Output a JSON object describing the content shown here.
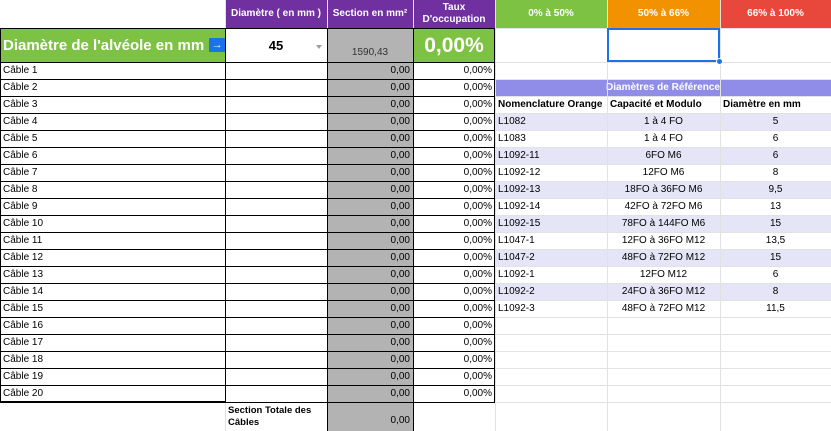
{
  "headers": {
    "diameter": "Diamètre ( en mm )",
    "section": "Section en mm²",
    "occupancy": "Taux\nD'occupation",
    "range_low": "0% à 50%",
    "range_mid": "50% à 66%",
    "range_high": "66% à 100%"
  },
  "alveole": {
    "label": "Diamètre de l'alvéole en mm",
    "arrow": "→",
    "diameter_value": "45",
    "section_value": "1590,43",
    "occupancy_value": "0,00%"
  },
  "cables": [
    {
      "name": "Câble 1",
      "section": "0,00",
      "rate": "0,00%"
    },
    {
      "name": "Câble 2",
      "section": "0,00",
      "rate": "0,00%"
    },
    {
      "name": "Câble 3",
      "section": "0,00",
      "rate": "0,00%"
    },
    {
      "name": "Câble 4",
      "section": "0,00",
      "rate": "0,00%"
    },
    {
      "name": "Câble 5",
      "section": "0,00",
      "rate": "0,00%"
    },
    {
      "name": "Câble 6",
      "section": "0,00",
      "rate": "0,00%"
    },
    {
      "name": "Câble 7",
      "section": "0,00",
      "rate": "0,00%"
    },
    {
      "name": "Câble 8",
      "section": "0,00",
      "rate": "0,00%"
    },
    {
      "name": "Câble 9",
      "section": "0,00",
      "rate": "0,00%"
    },
    {
      "name": "Câble 10",
      "section": "0,00",
      "rate": "0,00%"
    },
    {
      "name": "Câble 11",
      "section": "0,00",
      "rate": "0,00%"
    },
    {
      "name": "Câble 12",
      "section": "0,00",
      "rate": "0,00%"
    },
    {
      "name": "Câble 13",
      "section": "0,00",
      "rate": "0,00%"
    },
    {
      "name": "Câble 14",
      "section": "0,00",
      "rate": "0,00%"
    },
    {
      "name": "Câble 15",
      "section": "0,00",
      "rate": "0,00%"
    },
    {
      "name": "Câble 16",
      "section": "0,00",
      "rate": "0,00%"
    },
    {
      "name": "Câble 17",
      "section": "0,00",
      "rate": "0,00%"
    },
    {
      "name": "Câble 18",
      "section": "0,00",
      "rate": "0,00%"
    },
    {
      "name": "Câble 19",
      "section": "0,00",
      "rate": "0,00%"
    },
    {
      "name": "Câble 20",
      "section": "0,00",
      "rate": "0,00%"
    }
  ],
  "total": {
    "label": "Section Totale des Câbles",
    "value": "0,00"
  },
  "reference": {
    "title": "Diamètres de Référence",
    "columns": [
      "Nomenclature Orange",
      "Capacité et Modulo",
      "Diamètre en mm"
    ],
    "rows": [
      {
        "name": "L1082",
        "capacity": "1 à 4 FO",
        "diameter": "5"
      },
      {
        "name": "L1083",
        "capacity": "1 à 4 FO",
        "diameter": "6"
      },
      {
        "name": "L1092-11",
        "capacity": "6FO M6",
        "diameter": "6"
      },
      {
        "name": "L1092-12",
        "capacity": "12FO M6",
        "diameter": "8"
      },
      {
        "name": "L1092-13",
        "capacity": "18FO à 36FO M6",
        "diameter": "9,5"
      },
      {
        "name": "L1092-14",
        "capacity": "42FO à 72FO M6",
        "diameter": "13"
      },
      {
        "name": "L1092-15",
        "capacity": "78FO à 144FO M6",
        "diameter": "15"
      },
      {
        "name": "L1047-1",
        "capacity": "12FO à 36FO M12",
        "diameter": "13,5"
      },
      {
        "name": "L1047-2",
        "capacity": "48FO à 72FO M12",
        "diameter": "15"
      },
      {
        "name": "L1092-1",
        "capacity": "12FO M12",
        "diameter": "6"
      },
      {
        "name": "L1092-2",
        "capacity": "24FO à 36FO M12",
        "diameter": "8"
      },
      {
        "name": "L1092-3",
        "capacity": "48FO à 72FO M12",
        "diameter": "11,5"
      }
    ],
    "shaded_rows": [
      0,
      2,
      4,
      6,
      8,
      10
    ]
  },
  "colors": {
    "purple": "#7030a0",
    "green": "#7dc243",
    "orange": "#f39200",
    "red": "#e8473b",
    "grey": "#b3b3b3",
    "lavender": "#e6e4f7",
    "reference_header": "#8f8de8",
    "selection": "#1a73e8",
    "arrow_button": "#1a73e8"
  },
  "icons": {
    "arrow": "arrow-right-icon",
    "dropdown": "dropdown-caret-icon"
  }
}
